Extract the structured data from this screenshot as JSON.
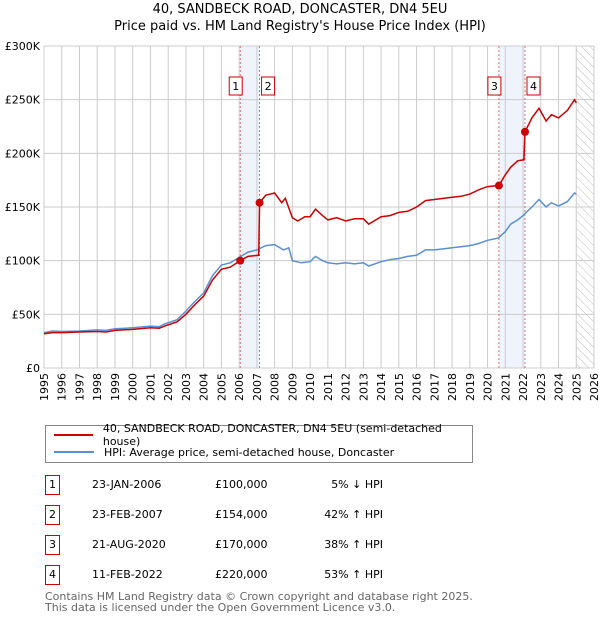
{
  "title": "40, SANDBECK ROAD, DONCASTER, DN4 5EU",
  "subtitle": "Price paid vs. HM Land Registry's House Price Index (HPI)",
  "colors": {
    "property": "#cc0000",
    "hpi": "#5b8fd4",
    "band": "#eef3fc"
  },
  "chart_data": {
    "type": "line",
    "title": "Price paid vs. HM Land Registry's House Price Index (HPI)",
    "xlim": [
      1995,
      2026
    ],
    "ylim": [
      0,
      300000
    ],
    "yticks": [
      {
        "v": 0,
        "label": "£0"
      },
      {
        "v": 50000,
        "label": "£50K"
      },
      {
        "v": 100000,
        "label": "£100K"
      },
      {
        "v": 150000,
        "label": "£150K"
      },
      {
        "v": 200000,
        "label": "£200K"
      },
      {
        "v": 250000,
        "label": "£250K"
      },
      {
        "v": 300000,
        "label": "£300K"
      }
    ],
    "xticks": [
      "1995",
      "1996",
      "1997",
      "1998",
      "1999",
      "2000",
      "2001",
      "2002",
      "2003",
      "2004",
      "2005",
      "2006",
      "2007",
      "2008",
      "2009",
      "2010",
      "2011",
      "2012",
      "2013",
      "2014",
      "2015",
      "2016",
      "2017",
      "2018",
      "2019",
      "2020",
      "2021",
      "2022",
      "2023",
      "2024",
      "2025",
      "2026"
    ],
    "forecast_start": 2025.0,
    "bands": [
      [
        2006.06,
        2007.15
      ],
      [
        2020.64,
        2022.11
      ]
    ],
    "sales": [
      {
        "label": "1",
        "x": 2006.06,
        "y": 100000
      },
      {
        "label": "2",
        "x": 2007.15,
        "y": 154000
      },
      {
        "label": "3",
        "x": 2020.64,
        "y": 170000
      },
      {
        "label": "4",
        "x": 2022.11,
        "y": 220000
      }
    ],
    "series": [
      {
        "name": "40, SANDBECK ROAD, DONCASTER, DN4 5EU (semi-detached house)",
        "color": "#cc0000",
        "x": [
          1995,
          1995.5,
          1996,
          1997,
          1998,
          1998.5,
          1999,
          2000,
          2001,
          2001.5,
          2001.8,
          2002.5,
          2003,
          2003.5,
          2004,
          2004.5,
          2005,
          2005.5,
          2006.06,
          2006.5,
          2007.1,
          2007.15,
          2007.5,
          2008,
          2008.4,
          2008.6,
          2009,
          2009.3,
          2009.7,
          2010,
          2010.3,
          2010.7,
          2011,
          2011.5,
          2012,
          2012.5,
          2013,
          2013.3,
          2014,
          2014.5,
          2015,
          2015.5,
          2016,
          2016.5,
          2017,
          2017.5,
          2018,
          2018.5,
          2019,
          2019.5,
          2020,
          2020.64,
          2021,
          2021.3,
          2021.7,
          2022.05,
          2022.11,
          2022.5,
          2022.9,
          2023.3,
          2023.6,
          2024,
          2024.5,
          2024.9,
          2025
        ],
        "y": [
          32000,
          33000,
          33000,
          33500,
          34000,
          33500,
          35000,
          36000,
          37500,
          37000,
          39000,
          43000,
          50000,
          59000,
          67000,
          82000,
          92000,
          94000,
          100000,
          104000,
          105000,
          154000,
          161000,
          163000,
          154000,
          158000,
          140000,
          137000,
          141000,
          141000,
          148000,
          142000,
          138000,
          140000,
          137000,
          139000,
          139000,
          134000,
          141000,
          142000,
          145000,
          146000,
          150000,
          156000,
          157000,
          158000,
          159000,
          160000,
          162000,
          166000,
          169000,
          170000,
          180000,
          187000,
          193000,
          194000,
          220000,
          233000,
          242000,
          230000,
          236000,
          233000,
          240000,
          250000,
          247000
        ]
      },
      {
        "name": "HPI: Average price, semi-detached house, Doncaster",
        "color": "#5b8fd4",
        "x": [
          1995,
          1995.5,
          1996,
          1997,
          1998,
          1998.5,
          1999,
          2000,
          2001,
          2001.5,
          2001.8,
          2002.5,
          2003,
          2003.5,
          2004,
          2004.5,
          2005,
          2005.5,
          2006,
          2006.5,
          2007,
          2007.5,
          2008,
          2008.5,
          2008.8,
          2009,
          2009.5,
          2010,
          2010.3,
          2010.7,
          2011,
          2011.5,
          2012,
          2012.5,
          2013,
          2013.3,
          2014,
          2014.5,
          2015,
          2015.5,
          2016,
          2016.5,
          2017,
          2017.5,
          2018,
          2018.5,
          2019,
          2019.5,
          2020,
          2020.6,
          2021,
          2021.3,
          2021.7,
          2022,
          2022.5,
          2022.9,
          2023.3,
          2023.6,
          2024,
          2024.5,
          2024.9,
          2025
        ],
        "y": [
          33000,
          34500,
          34000,
          34500,
          35500,
          35000,
          36500,
          37500,
          39000,
          38500,
          41000,
          45000,
          53000,
          62000,
          70000,
          86000,
          96000,
          98000,
          103000,
          108000,
          110000,
          114000,
          115000,
          110000,
          112000,
          100000,
          98000,
          99000,
          104000,
          100000,
          98000,
          97000,
          98000,
          97000,
          98000,
          95000,
          99000,
          101000,
          102000,
          104000,
          105000,
          110000,
          110000,
          111000,
          112000,
          113000,
          114000,
          116000,
          119000,
          121000,
          127000,
          134000,
          138000,
          142000,
          150000,
          157000,
          150000,
          154000,
          151000,
          155000,
          163000,
          162000
        ]
      }
    ]
  },
  "legend": {
    "property": "40, SANDBECK ROAD, DONCASTER, DN4 5EU (semi-detached house)",
    "hpi": "HPI: Average price, semi-detached house, Doncaster"
  },
  "transactions": [
    {
      "num": "1",
      "date": "23-JAN-2006",
      "price": "£100,000",
      "hpi": "5% ↓ HPI"
    },
    {
      "num": "2",
      "date": "23-FEB-2007",
      "price": "£154,000",
      "hpi": "42% ↑ HPI"
    },
    {
      "num": "3",
      "date": "21-AUG-2020",
      "price": "£170,000",
      "hpi": "38% ↑ HPI"
    },
    {
      "num": "4",
      "date": "11-FEB-2022",
      "price": "£220,000",
      "hpi": "53% ↑ HPI"
    }
  ],
  "footer": {
    "line1": "Contains HM Land Registry data © Crown copyright and database right 2025.",
    "line2": "This data is licensed under the Open Government Licence v3.0."
  }
}
